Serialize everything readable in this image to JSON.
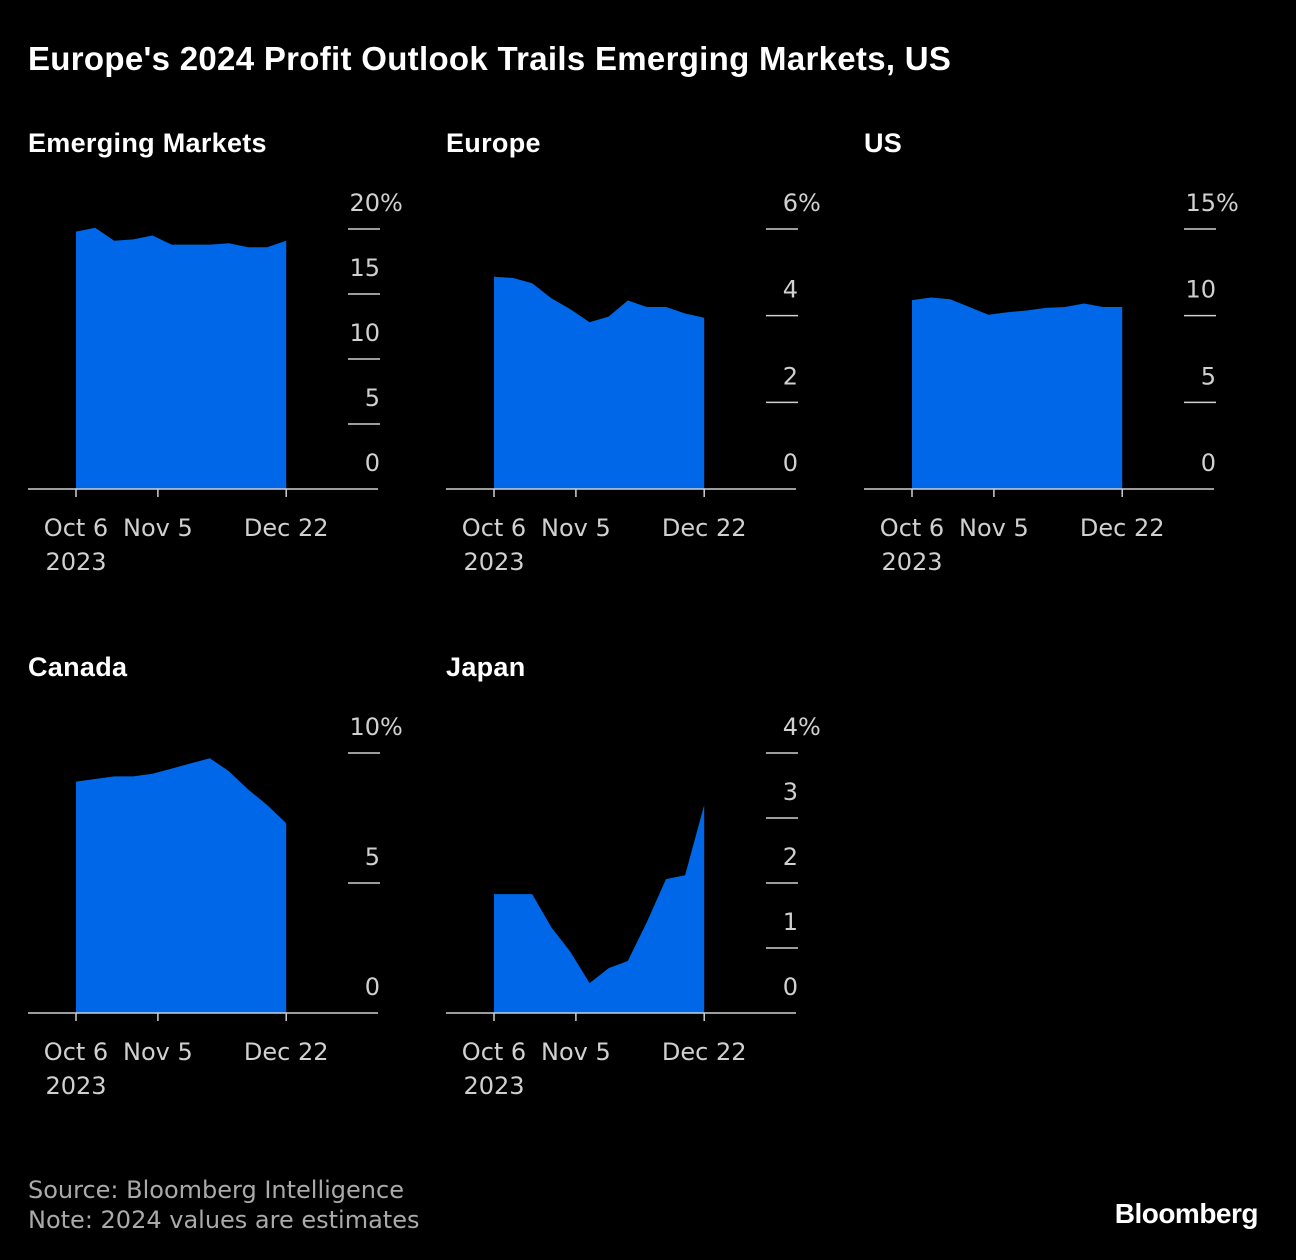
{
  "title": "Europe's 2024 Profit Outlook Trails Emerging Markets, US",
  "footer": {
    "source": "Source: Bloomberg Intelligence",
    "note": "Note: 2024 values are estimates",
    "logo": "Bloomberg"
  },
  "colors": {
    "area": "#0068e8",
    "axis": "#d0d0d0",
    "background": "#000000"
  },
  "chart_data": [
    {
      "type": "area",
      "title": "Emerging Markets",
      "x": [
        "2023-10-06",
        "2023-10-13",
        "2023-10-20",
        "2023-10-27",
        "2023-11-03",
        "2023-11-10",
        "2023-11-17",
        "2023-11-24",
        "2023-12-01",
        "2023-12-08",
        "2023-12-15",
        "2023-12-22"
      ],
      "values": [
        19.8,
        20.1,
        19.1,
        19.2,
        19.5,
        18.8,
        18.8,
        18.8,
        18.9,
        18.6,
        18.6,
        19.1
      ],
      "yticks": [
        "0",
        "5",
        "10",
        "15",
        "20"
      ],
      "ytick_values": [
        0,
        5,
        10,
        15,
        20
      ],
      "ylim": [
        0,
        20
      ],
      "unit": "%",
      "xticks": [
        {
          "date": "2023-10-06",
          "label": "Oct 6",
          "sublabel": "2023"
        },
        {
          "date": "2023-11-05",
          "label": "Nov 5"
        },
        {
          "date": "2023-12-22",
          "label": "Dec 22"
        }
      ]
    },
    {
      "type": "area",
      "title": "Europe",
      "x": [
        "2023-10-06",
        "2023-10-13",
        "2023-10-20",
        "2023-10-27",
        "2023-11-03",
        "2023-11-10",
        "2023-11-17",
        "2023-11-24",
        "2023-12-01",
        "2023-12-08",
        "2023-12-15",
        "2023-12-22"
      ],
      "values": [
        4.9,
        4.87,
        4.75,
        4.4,
        4.15,
        3.85,
        3.98,
        4.35,
        4.2,
        4.2,
        4.05,
        3.95
      ],
      "yticks": [
        "0",
        "2",
        "4",
        "6"
      ],
      "ytick_values": [
        0,
        2,
        4,
        6
      ],
      "ylim": [
        0,
        6
      ],
      "unit": "%",
      "xticks": [
        {
          "date": "2023-10-06",
          "label": "Oct 6",
          "sublabel": "2023"
        },
        {
          "date": "2023-11-05",
          "label": "Nov 5"
        },
        {
          "date": "2023-12-22",
          "label": "Dec 22"
        }
      ]
    },
    {
      "type": "area",
      "title": "US",
      "x": [
        "2023-10-06",
        "2023-10-13",
        "2023-10-20",
        "2023-10-27",
        "2023-11-03",
        "2023-11-10",
        "2023-11-17",
        "2023-11-24",
        "2023-12-01",
        "2023-12-08",
        "2023-12-15",
        "2023-12-22"
      ],
      "values": [
        10.9,
        11.05,
        10.95,
        10.5,
        10.05,
        10.2,
        10.3,
        10.45,
        10.5,
        10.7,
        10.5,
        10.5
      ],
      "yticks": [
        "0",
        "5",
        "10",
        "15"
      ],
      "ytick_values": [
        0,
        5,
        10,
        15
      ],
      "ylim": [
        0,
        15
      ],
      "unit": "%",
      "xticks": [
        {
          "date": "2023-10-06",
          "label": "Oct 6",
          "sublabel": "2023"
        },
        {
          "date": "2023-11-05",
          "label": "Nov 5"
        },
        {
          "date": "2023-12-22",
          "label": "Dec 22"
        }
      ]
    },
    {
      "type": "area",
      "title": "Canada",
      "x": [
        "2023-10-06",
        "2023-10-13",
        "2023-10-20",
        "2023-10-27",
        "2023-11-03",
        "2023-11-10",
        "2023-11-17",
        "2023-11-24",
        "2023-12-01",
        "2023-12-08",
        "2023-12-15",
        "2023-12-22"
      ],
      "values": [
        8.9,
        9.0,
        9.1,
        9.1,
        9.2,
        9.4,
        9.6,
        9.8,
        9.3,
        8.6,
        8.0,
        7.3
      ],
      "yticks": [
        "0",
        "5",
        "10"
      ],
      "ytick_values": [
        0,
        5,
        10
      ],
      "ylim": [
        0,
        10
      ],
      "unit": "%",
      "xticks": [
        {
          "date": "2023-10-06",
          "label": "Oct 6",
          "sublabel": "2023"
        },
        {
          "date": "2023-11-05",
          "label": "Nov 5"
        },
        {
          "date": "2023-12-22",
          "label": "Dec 22"
        }
      ]
    },
    {
      "type": "area",
      "title": "Japan",
      "x": [
        "2023-10-06",
        "2023-10-13",
        "2023-10-20",
        "2023-10-27",
        "2023-11-03",
        "2023-11-10",
        "2023-11-17",
        "2023-11-24",
        "2023-12-01",
        "2023-12-08",
        "2023-12-15",
        "2023-12-22"
      ],
      "values": [
        1.83,
        1.83,
        1.83,
        1.32,
        0.94,
        0.46,
        0.69,
        0.8,
        1.4,
        2.06,
        2.12,
        3.2
      ],
      "yticks": [
        "0",
        "1",
        "2",
        "3",
        "4"
      ],
      "ytick_values": [
        0,
        1,
        2,
        3,
        4
      ],
      "ylim": [
        0,
        4
      ],
      "unit": "%",
      "xticks": [
        {
          "date": "2023-10-06",
          "label": "Oct 6",
          "sublabel": "2023"
        },
        {
          "date": "2023-11-05",
          "label": "Nov 5"
        },
        {
          "date": "2023-12-22",
          "label": "Dec 22"
        }
      ]
    }
  ]
}
